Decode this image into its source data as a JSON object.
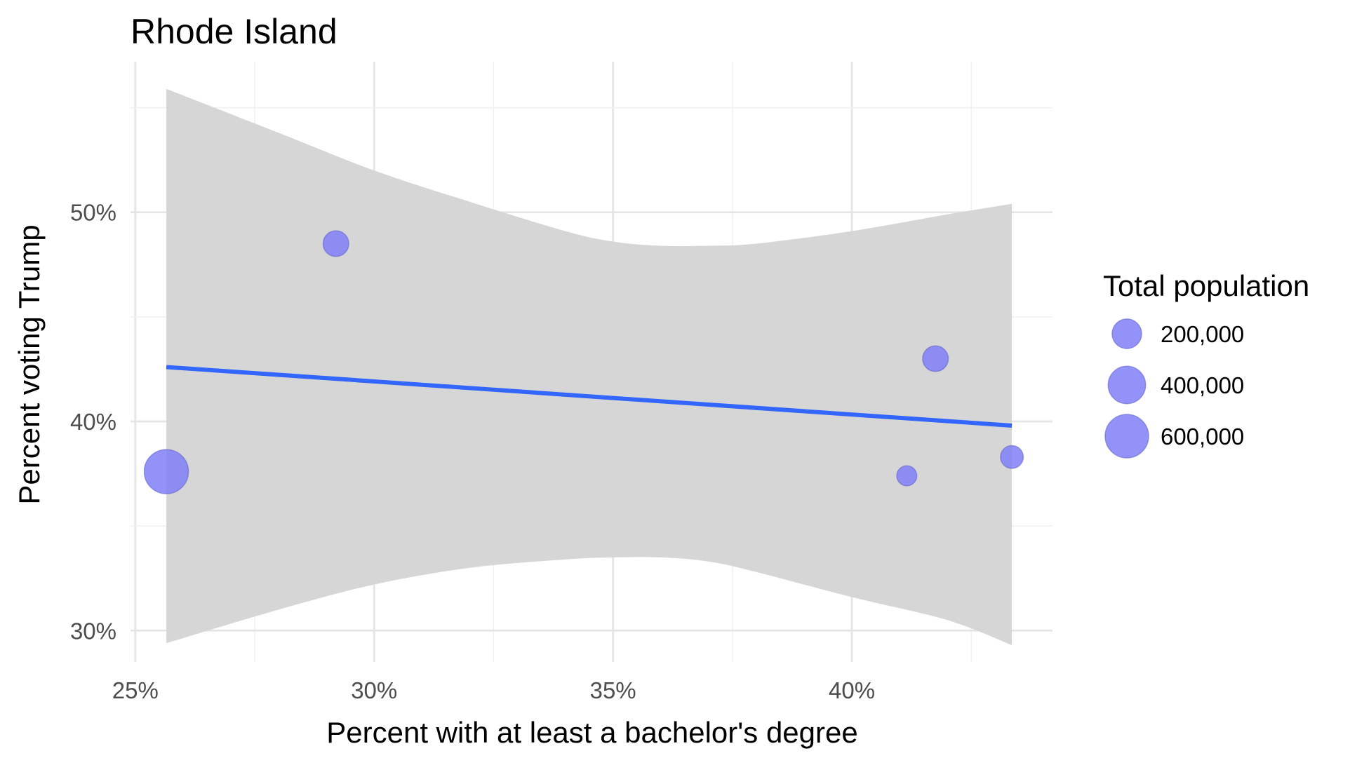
{
  "chart_data": {
    "type": "scatter",
    "title": "Rhode Island",
    "xlabel": "Percent with at least a bachelor's degree",
    "ylabel": "Percent voting Trump",
    "xlim": [
      24.9,
      44.2
    ],
    "ylim": [
      28.5,
      57.2
    ],
    "x_ticks": [
      {
        "value": 25,
        "label": "25%"
      },
      {
        "value": 30,
        "label": "30%"
      },
      {
        "value": 35,
        "label": "35%"
      },
      {
        "value": 40,
        "label": "40%"
      }
    ],
    "y_ticks": [
      {
        "value": 30,
        "label": "30%"
      },
      {
        "value": 40,
        "label": "40%"
      },
      {
        "value": 50,
        "label": "50%"
      }
    ],
    "points": [
      {
        "x": 25.65,
        "y": 37.6,
        "population": 626667
      },
      {
        "x": 29.2,
        "y": 48.5,
        "population": 126979
      },
      {
        "x": 41.75,
        "y": 43.0,
        "population": 126150
      },
      {
        "x": 41.15,
        "y": 37.4,
        "population": 49875
      },
      {
        "x": 43.35,
        "y": 38.3,
        "population": 82888
      }
    ],
    "trend_line": [
      {
        "x": 25.65,
        "y": 42.6
      },
      {
        "x": 43.35,
        "y": 39.8
      }
    ],
    "confidence_band": {
      "x": [
        25.65,
        28,
        30,
        32,
        34,
        35,
        36,
        37,
        38,
        40,
        42,
        43.35
      ],
      "upper": [
        55.9,
        53.8,
        52.0,
        50.5,
        49.1,
        48.6,
        48.4,
        48.4,
        48.5,
        49.1,
        49.9,
        50.4
      ],
      "lower": [
        29.4,
        31.0,
        32.2,
        33.0,
        33.4,
        33.5,
        33.5,
        33.3,
        32.8,
        31.6,
        30.5,
        29.3
      ]
    },
    "legend": {
      "title": "Total population",
      "placement": "right",
      "entries": [
        {
          "label": "200,000",
          "value": 200000
        },
        {
          "label": "400,000",
          "value": 400000
        },
        {
          "label": "600,000",
          "value": 600000
        }
      ]
    },
    "colors": {
      "point_fill": "#7f7ff8",
      "point_stroke": "#6666cc",
      "trend_line": "#3366ff",
      "band": "#d6d6d6",
      "grid": "#e5e5e5"
    }
  }
}
